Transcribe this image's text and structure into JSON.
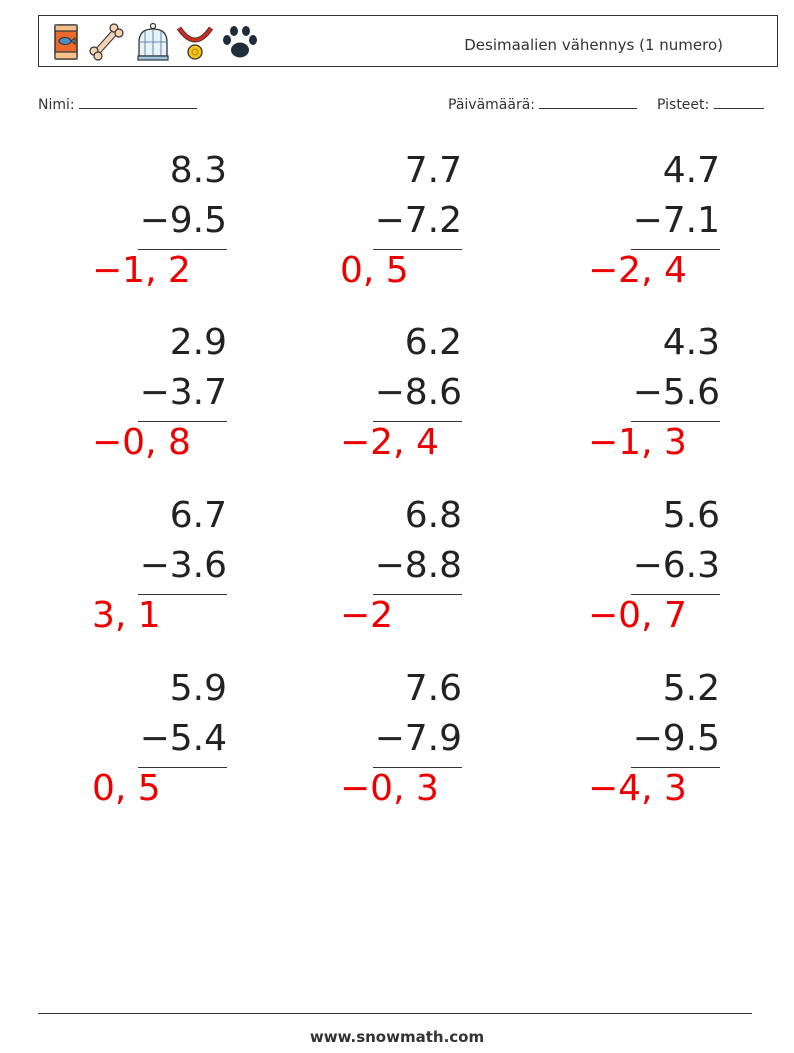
{
  "header": {
    "title": "Desimaalien vähennys (1 numero)",
    "icons": [
      "fish-food-bag-icon",
      "bone-icon",
      "birdcage-icon",
      "pet-collar-icon",
      "paw-print-icon"
    ]
  },
  "meta": {
    "name_label": "Nimi:",
    "date_label": "Päivämäärä:",
    "score_label": "Pisteet:"
  },
  "problems": [
    {
      "a": "8.3",
      "b": "−9.5",
      "answer": "−1, 2"
    },
    {
      "a": "7.7",
      "b": "−7.2",
      "answer": "0, 5"
    },
    {
      "a": "4.7",
      "b": "−7.1",
      "answer": "−2, 4"
    },
    {
      "a": "2.9",
      "b": "−3.7",
      "answer": "−0, 8"
    },
    {
      "a": "6.2",
      "b": "−8.6",
      "answer": "−2, 4"
    },
    {
      "a": "4.3",
      "b": "−5.6",
      "answer": "−1, 3"
    },
    {
      "a": "6.7",
      "b": "−3.6",
      "answer": "3, 1"
    },
    {
      "a": "6.8",
      "b": "−8.8",
      "answer": "−2"
    },
    {
      "a": "5.6",
      "b": "−6.3",
      "answer": "−0, 7"
    },
    {
      "a": "5.9",
      "b": "−5.4",
      "answer": "0, 5"
    },
    {
      "a": "7.6",
      "b": "−7.9",
      "answer": "−0, 3"
    },
    {
      "a": "5.2",
      "b": "−9.5",
      "answer": "−4, 3"
    }
  ],
  "footer": {
    "site": "www.snowmath.com"
  },
  "colors": {
    "answer": "#ee0000",
    "text": "#222222"
  }
}
